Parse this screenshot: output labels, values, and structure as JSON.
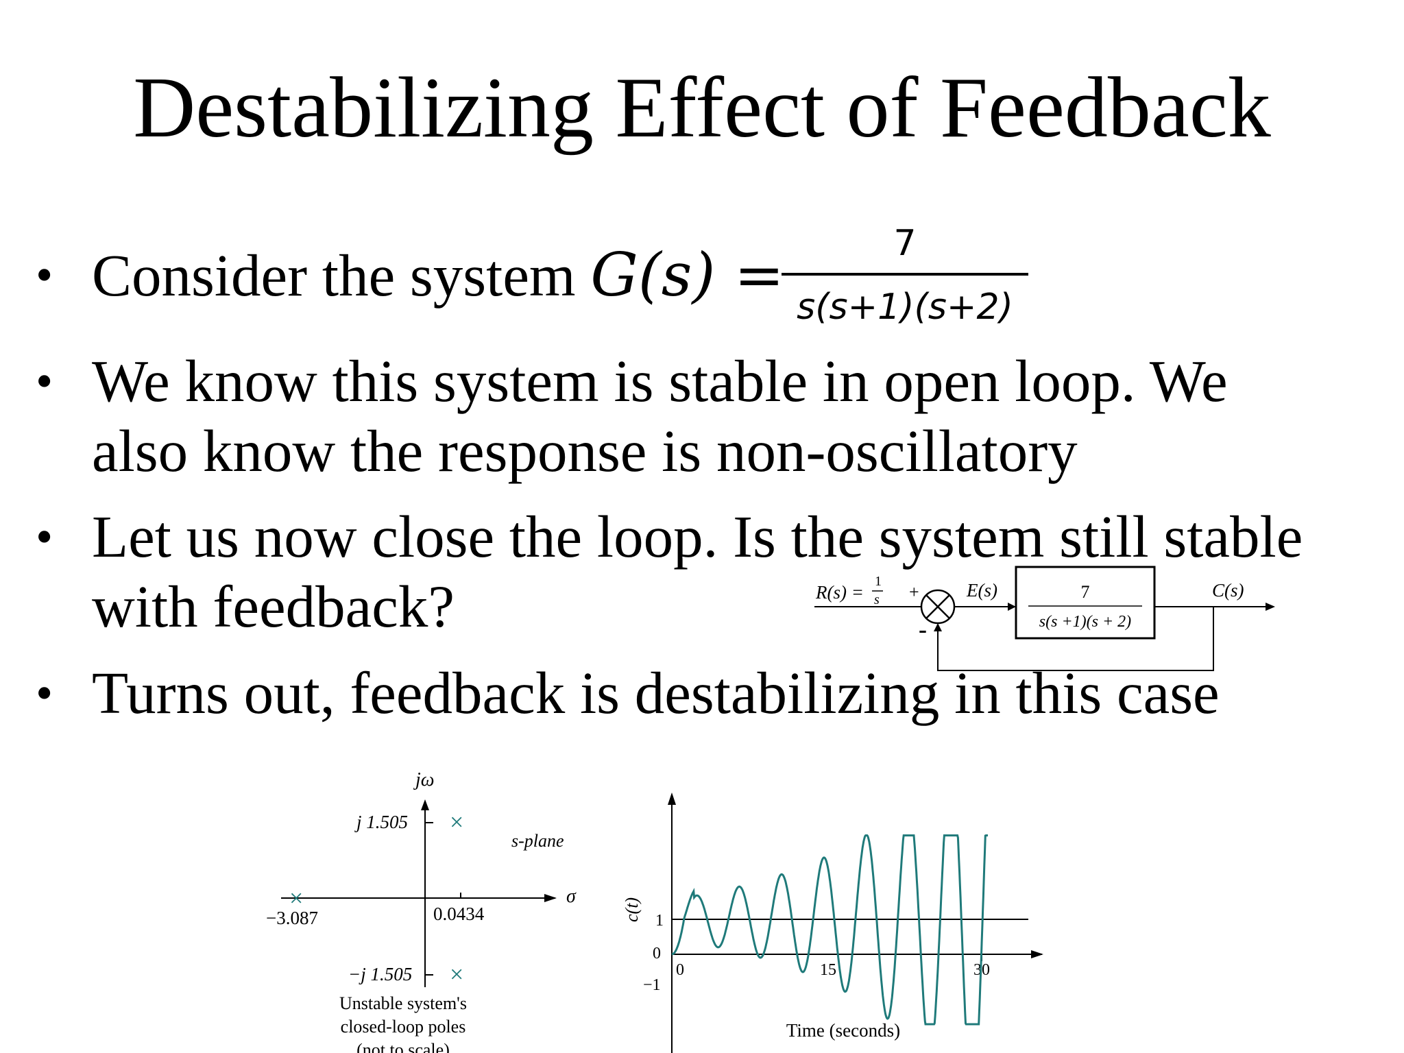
{
  "slide": {
    "title": "Destabilizing Effect of Feedback",
    "bullets": [
      {
        "text": "Consider the system ",
        "math": "G(s) =",
        "frac_num": "7",
        "frac_den": "s(s+1)(s+2)"
      },
      {
        "line1": "We know this system is stable in open loop. We",
        "line2": "also know the response is non-oscillatory"
      },
      {
        "line1": "Let us now close the loop. Is the system still stable",
        "line2": "with feedback?"
      },
      {
        "text": "Turns out, feedback is destabilizing in this case"
      }
    ],
    "bullet_symbol": "•"
  },
  "block_diagram": {
    "input_label": "R(s) =",
    "input_num": "1",
    "input_den": "s",
    "plus_sign": "+",
    "minus_sign": "-",
    "error_label": "E(s)",
    "block_num": "7",
    "block_den": "s(s +1)(s + 2)",
    "output_label": "C(s)"
  },
  "pole_plot": {
    "axis_y_label": "jω",
    "axis_x_label": "σ",
    "plane_label": "s-plane",
    "pole_marker": "×",
    "pole_upper_label": "j 1.505",
    "pole_lower_label": "−j 1.505",
    "pole_real_label": "−3.087",
    "pole_pair_real_label": "0.0434",
    "caption": [
      "Unstable system's",
      "closed-loop poles",
      "(not to scale)"
    ],
    "poles": [
      {
        "re": -3.087,
        "im": 0
      },
      {
        "re": 0.0434,
        "im": 1.505
      },
      {
        "re": 0.0434,
        "im": -1.505
      }
    ]
  },
  "response_plot": {
    "y_label": "c(t)",
    "x_label": "Time (seconds)",
    "y_ticks": [
      "1",
      "0",
      "−1"
    ],
    "x_ticks": [
      "0",
      "15",
      "30"
    ],
    "color": "#1f7a7a"
  }
}
